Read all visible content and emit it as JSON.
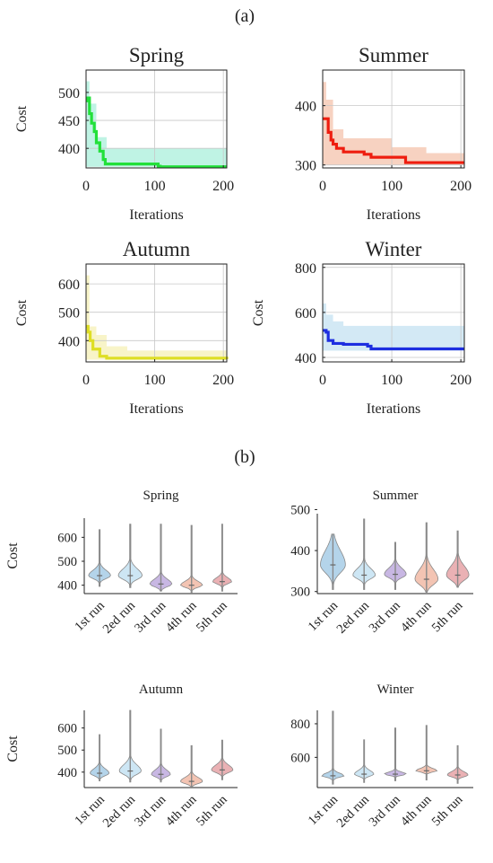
{
  "section_a_label": "(a)",
  "section_b_label": "(b)",
  "chart_data": [
    {
      "type": "area",
      "title": "Spring",
      "xlabel": "Iterations",
      "ylabel": "Cost",
      "xlim": [
        0,
        205
      ],
      "ylim": [
        365,
        540
      ],
      "xticks": [
        0,
        100,
        200
      ],
      "yticks": [
        400,
        450,
        500
      ],
      "grid": true,
      "line_color": "#22e03a",
      "band_color": "#bff3e4",
      "best": {
        "x": [
          0,
          2,
          5,
          8,
          12,
          15,
          20,
          25,
          28,
          60,
          105,
          108,
          205
        ],
        "y": [
          485,
          490,
          462,
          445,
          430,
          410,
          395,
          380,
          372,
          372,
          368,
          367,
          367
        ]
      },
      "band_upper": {
        "x": [
          0,
          5,
          15,
          30,
          100,
          205
        ],
        "y": [
          520,
          480,
          420,
          400,
          400,
          400
        ]
      },
      "band_lower": {
        "x": [
          0,
          205
        ],
        "y": [
          367,
          367
        ]
      }
    },
    {
      "type": "area",
      "title": "Summer",
      "xlabel": "Iterations",
      "ylabel": "",
      "xlim": [
        0,
        205
      ],
      "ylim": [
        295,
        460
      ],
      "xticks": [
        0,
        100,
        200
      ],
      "yticks": [
        300,
        400
      ],
      "grid": true,
      "line_color": "#ee1d0f",
      "band_color": "#f7d2c1",
      "best": {
        "x": [
          0,
          5,
          8,
          12,
          15,
          20,
          30,
          60,
          70,
          100,
          120,
          205
        ],
        "y": [
          378,
          378,
          355,
          342,
          335,
          328,
          322,
          318,
          313,
          313,
          304,
          304
        ]
      },
      "band_upper": {
        "x": [
          0,
          5,
          15,
          30,
          100,
          150,
          205
        ],
        "y": [
          440,
          410,
          360,
          345,
          330,
          320,
          318
        ]
      },
      "band_lower": {
        "x": [
          0,
          205
        ],
        "y": [
          300,
          300
        ]
      }
    },
    {
      "type": "area",
      "title": "Autumn",
      "xlabel": "Iterations",
      "ylabel": "Cost",
      "xlim": [
        0,
        205
      ],
      "ylim": [
        325,
        670
      ],
      "xticks": [
        0,
        100,
        200
      ],
      "yticks": [
        400,
        500,
        600
      ],
      "grid": true,
      "line_color": "#dede25",
      "band_color": "#f8f4c8",
      "best": {
        "x": [
          0,
          3,
          6,
          10,
          20,
          30,
          205
        ],
        "y": [
          450,
          430,
          400,
          370,
          345,
          338,
          335
        ]
      },
      "band_upper": {
        "x": [
          0,
          5,
          15,
          30,
          60,
          205
        ],
        "y": [
          630,
          450,
          420,
          380,
          365,
          355
        ]
      },
      "band_lower": {
        "x": [
          0,
          205
        ],
        "y": [
          333,
          333
        ]
      }
    },
    {
      "type": "area",
      "title": "Winter",
      "xlabel": "Iterations",
      "ylabel": "Cost",
      "xlim": [
        0,
        205
      ],
      "ylim": [
        380,
        815
      ],
      "xticks": [
        0,
        100,
        200
      ],
      "yticks": [
        400,
        600,
        800
      ],
      "grid": true,
      "line_color": "#1d2ee0",
      "band_color": "#d3e9f5",
      "best": {
        "x": [
          0,
          5,
          8,
          15,
          30,
          65,
          70,
          205
        ],
        "y": [
          520,
          512,
          475,
          462,
          458,
          450,
          438,
          438
        ]
      },
      "band_upper": {
        "x": [
          0,
          5,
          15,
          30,
          100,
          205
        ],
        "y": [
          640,
          590,
          560,
          540,
          540,
          540
        ]
      },
      "band_lower": {
        "x": [
          0,
          205
        ],
        "y": [
          430,
          430
        ]
      }
    },
    {
      "type": "violin",
      "title": "Spring",
      "ylabel": "Cost",
      "categories": [
        "1st run",
        "2ed run",
        "3rd run",
        "4th run",
        "5th run"
      ],
      "colors": [
        "#b4d4ea",
        "#cde6f4",
        "#c8b7e3",
        "#f3c4b3",
        "#eab1b4"
      ],
      "ylim": [
        365,
        680
      ],
      "yticks": [
        400,
        500,
        600
      ],
      "series": [
        {
          "name": "1st run",
          "min": 395,
          "max": 632,
          "peak": 440,
          "spread": 22,
          "width": 0.72
        },
        {
          "name": "2ed run",
          "min": 390,
          "max": 655,
          "peak": 440,
          "spread": 28,
          "width": 0.78
        },
        {
          "name": "3rd run",
          "min": 375,
          "max": 655,
          "peak": 405,
          "spread": 20,
          "width": 0.72
        },
        {
          "name": "4th run",
          "min": 370,
          "max": 650,
          "peak": 400,
          "spread": 16,
          "width": 0.72
        },
        {
          "name": "5th run",
          "min": 375,
          "max": 655,
          "peak": 415,
          "spread": 16,
          "width": 0.62
        }
      ]
    },
    {
      "type": "violin",
      "title": "Summer",
      "ylabel": "",
      "categories": [
        "1st run",
        "2ed run",
        "3rd run",
        "4th run",
        "5th run"
      ],
      "colors": [
        "#b4d4ea",
        "#cde6f4",
        "#c8b7e3",
        "#f3c4b3",
        "#eab1b4"
      ],
      "ylim": [
        295,
        490
      ],
      "yticks": [
        300,
        400,
        500
      ],
      "series": [
        {
          "name": "1st run",
          "min": 305,
          "max": 440,
          "peak": 365,
          "spread": 35,
          "width": 0.8
        },
        {
          "name": "2ed run",
          "min": 305,
          "max": 477,
          "peak": 340,
          "spread": 16,
          "width": 0.72
        },
        {
          "name": "3rd run",
          "min": 305,
          "max": 420,
          "peak": 342,
          "spread": 15,
          "width": 0.7
        },
        {
          "name": "4th run",
          "min": 298,
          "max": 468,
          "peak": 330,
          "spread": 24,
          "width": 0.74
        },
        {
          "name": "5th run",
          "min": 310,
          "max": 448,
          "peak": 340,
          "spread": 22,
          "width": 0.72
        }
      ]
    },
    {
      "type": "violin",
      "title": "Autumn",
      "ylabel": "Cost",
      "categories": [
        "1st run",
        "2ed run",
        "3rd run",
        "4th run",
        "5th run"
      ],
      "colors": [
        "#b4d4ea",
        "#cde6f4",
        "#c8b7e3",
        "#f3c4b3",
        "#eab1b4"
      ],
      "ylim": [
        330,
        680
      ],
      "yticks": [
        400,
        500,
        600
      ],
      "series": [
        {
          "name": "1st run",
          "min": 360,
          "max": 570,
          "peak": 395,
          "spread": 20,
          "width": 0.62
        },
        {
          "name": "2ed run",
          "min": 355,
          "max": 680,
          "peak": 405,
          "spread": 28,
          "width": 0.72
        },
        {
          "name": "3rd run",
          "min": 355,
          "max": 595,
          "peak": 390,
          "spread": 20,
          "width": 0.62
        },
        {
          "name": "4th run",
          "min": 335,
          "max": 520,
          "peak": 358,
          "spread": 18,
          "width": 0.72
        },
        {
          "name": "5th run",
          "min": 365,
          "max": 545,
          "peak": 410,
          "spread": 22,
          "width": 0.7
        }
      ]
    },
    {
      "type": "violin",
      "title": "Winter",
      "ylabel": "",
      "categories": [
        "1st run",
        "2ed run",
        "3rd run",
        "4th run",
        "5th run"
      ],
      "colors": [
        "#b4d4ea",
        "#cde6f4",
        "#c8b7e3",
        "#f3c4b3",
        "#eab1b4"
      ],
      "ylim": [
        420,
        880
      ],
      "yticks": [
        600,
        800
      ],
      "series": [
        {
          "name": "1st run",
          "min": 440,
          "max": 875,
          "peak": 490,
          "spread": 16,
          "width": 0.72
        },
        {
          "name": "2ed run",
          "min": 450,
          "max": 705,
          "peak": 500,
          "spread": 22,
          "width": 0.62
        },
        {
          "name": "3rd run",
          "min": 460,
          "max": 775,
          "peak": 500,
          "spread": 12,
          "width": 0.72
        },
        {
          "name": "4th run",
          "min": 465,
          "max": 790,
          "peak": 520,
          "spread": 14,
          "width": 0.68
        },
        {
          "name": "5th run",
          "min": 445,
          "max": 670,
          "peak": 495,
          "spread": 20,
          "width": 0.66
        }
      ]
    }
  ]
}
